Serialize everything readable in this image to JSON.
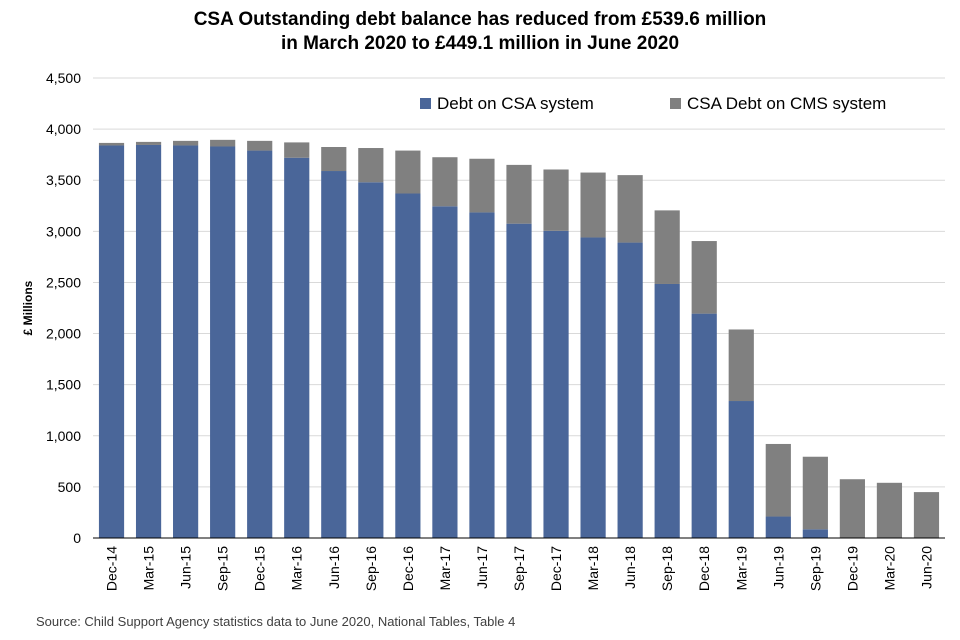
{
  "chart_data": {
    "type": "bar",
    "stacked": true,
    "title": "CSA Outstanding debt balance has reduced from £539.6 million",
    "subtitle": "in March 2020 to £449.1 million in June 2020",
    "xlabel": "",
    "ylabel": "£ Millions",
    "ylim": [
      0,
      4500
    ],
    "yticks": [
      0,
      500,
      1000,
      1500,
      2000,
      2500,
      3000,
      3500,
      4000,
      4500
    ],
    "ytick_labels": [
      "0",
      "500",
      "1,000",
      "1,500",
      "2,000",
      "2,500",
      "3,000",
      "3,500",
      "4,000",
      "4,500"
    ],
    "grid": true,
    "legend_position": "top-right",
    "categories": [
      "Dec-14",
      "Mar-15",
      "Jun-15",
      "Sep-15",
      "Dec-15",
      "Mar-16",
      "Jun-16",
      "Sep-16",
      "Dec-16",
      "Mar-17",
      "Jun-17",
      "Sep-17",
      "Dec-17",
      "Mar-18",
      "Jun-18",
      "Sep-18",
      "Dec-18",
      "Mar-19",
      "Jun-19",
      "Sep-19",
      "Dec-19",
      "Mar-20",
      "Jun-20"
    ],
    "series": [
      {
        "name": "Debt on CSA system",
        "color": "#4a6699",
        "values": [
          3840,
          3845,
          3840,
          3830,
          3790,
          3720,
          3590,
          3480,
          3370,
          3245,
          3185,
          3075,
          3005,
          2940,
          2890,
          2485,
          2195,
          1340,
          210,
          85,
          0,
          0,
          0
        ]
      },
      {
        "name": "CSA Debt on CMS system",
        "color": "#808080",
        "values": [
          25,
          30,
          45,
          65,
          95,
          150,
          235,
          335,
          420,
          480,
          525,
          575,
          600,
          635,
          660,
          720,
          710,
          700,
          710,
          710,
          575,
          540,
          449
        ]
      }
    ]
  },
  "source": "Source: Child Support Agency statistics data to June 2020, National Tables, Table 4"
}
